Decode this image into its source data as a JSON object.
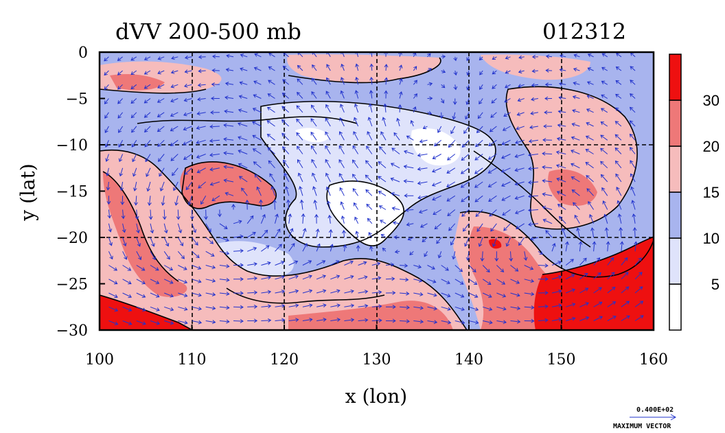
{
  "title": {
    "left": "dVV 200-500 mb",
    "right": "012312"
  },
  "axes": {
    "xlabel": "x (lon)",
    "ylabel": "y (lat)",
    "xlim": [
      100,
      160
    ],
    "ylim": [
      -30,
      0
    ],
    "xticks": [
      "100",
      "110",
      "120",
      "130",
      "140",
      "150",
      "160"
    ],
    "yticks": [
      "0",
      "−5",
      "−10",
      "−15",
      "−20",
      "−25",
      "−30"
    ],
    "grid": "dashed at every 10 lon and 5 lat"
  },
  "colorbar": {
    "labels": [
      "5",
      "10",
      "15",
      "20",
      "30"
    ],
    "levels": [
      0,
      5,
      10,
      15,
      20,
      30,
      40
    ],
    "colors": [
      "#ffffff",
      "#dfe3fb",
      "#a8b4ee",
      "#f6bcbc",
      "#ee7878",
      "#ee1010"
    ]
  },
  "vector_key": {
    "value": "0.400E+02",
    "label": "MAXIMUM VECTOR"
  },
  "chart_data": {
    "type": "heatmap",
    "title": "dVV 200-500 mb",
    "subtitle": "012312",
    "xlabel": "x (lon)",
    "ylabel": "y (lat)",
    "xlim": [
      100,
      160
    ],
    "ylim": [
      -30,
      0
    ],
    "fill_levels": [
      5,
      10,
      15,
      20,
      30
    ],
    "colors": [
      "#ffffff",
      "#dfe3fb",
      "#a8b4ee",
      "#f6bcbc",
      "#ee7878",
      "#ee1010"
    ],
    "overlay": "wind vectors (blue arrows)",
    "vector_reference": "0.400E+02",
    "features": [
      {
        "region": "lon 100-104, lat -26 to -30",
        "value_range": ">30"
      },
      {
        "region": "lon 150-160, lat -23 to -30",
        "value_range": ">30"
      },
      {
        "region": "lon 110-118, lat -12 to -20",
        "value_range": "20-30"
      },
      {
        "region": "lon 124-130, lat -14 to -20",
        "value_range": "0-5"
      },
      {
        "region": "lon 140-150, lat -18 to -26",
        "value_range": "20-30"
      },
      {
        "region": "lon 118-140, lat -8 to -20",
        "value_range": "5-15"
      }
    ]
  }
}
